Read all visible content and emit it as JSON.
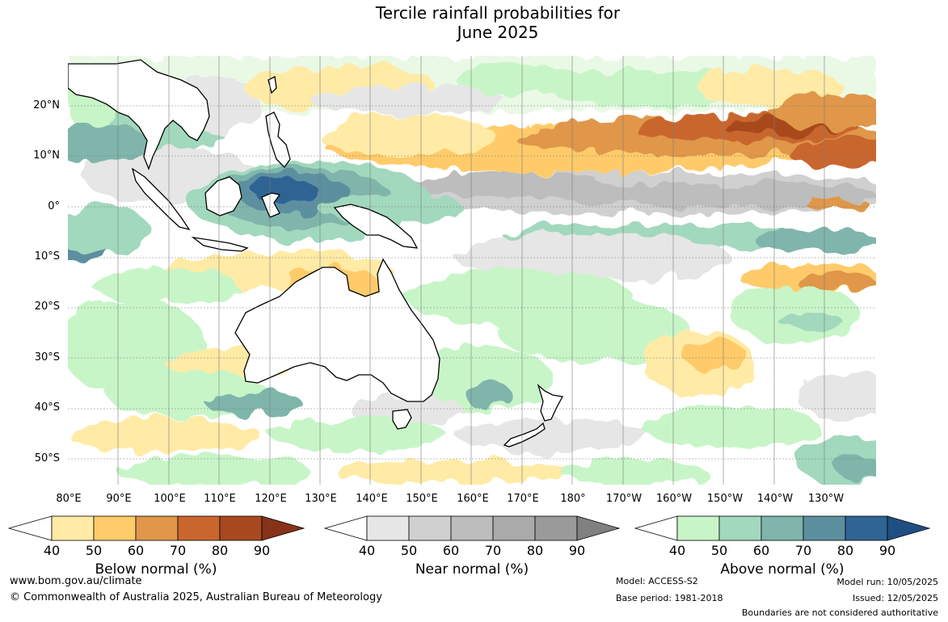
{
  "title": {
    "line1": "Tercile rainfall probabilities for",
    "line2": "June 2025"
  },
  "map": {
    "region": "Australia and Western Pacific",
    "lat_labels": [
      "20°N",
      "10°N",
      "0°",
      "10°S",
      "20°S",
      "30°S",
      "40°S",
      "50°S"
    ],
    "lon_labels": [
      "80°E",
      "90°E",
      "100°E",
      "110°E",
      "120°E",
      "130°E",
      "140°E",
      "150°E",
      "160°E",
      "170°E",
      "180°",
      "170°W",
      "160°W",
      "150°W",
      "140°W",
      "130°W"
    ],
    "colors": {
      "land_outline": "#000000",
      "neutral": "#ffffff",
      "below": [
        "#ffeba6",
        "#ffcb6b",
        "#e0974a",
        "#c9662e",
        "#a8491f",
        "#86331a"
      ],
      "near": [
        "#e6e6e6",
        "#d0d0d0",
        "#bdbdbd",
        "#aaaaaa",
        "#9a9a9a",
        "#808080"
      ],
      "above": [
        "#c8f5c8",
        "#a2d8bd",
        "#7fb5ab",
        "#5c8fa0",
        "#2f6494",
        "#1f4f82"
      ]
    }
  },
  "colorbars": [
    {
      "name": "Below normal (%)",
      "ticks": [
        "40",
        "50",
        "60",
        "70",
        "80",
        "90"
      ]
    },
    {
      "name": "Near normal (%)",
      "ticks": [
        "40",
        "50",
        "60",
        "70",
        "80",
        "90"
      ]
    },
    {
      "name": "Above normal (%)",
      "ticks": [
        "40",
        "50",
        "60",
        "70",
        "80",
        "90"
      ]
    }
  ],
  "footer": {
    "website": "www.bom.gov.au/climate",
    "copyright": "© Commonwealth of Australia 2025, Australian Bureau of Meteorology",
    "model": "Model: ACCESS-S2",
    "base_period": "Base period: 1981-2018",
    "model_run": "Model run: 10/05/2025",
    "issued": "Issued: 12/05/2025",
    "disclaimer": "Boundaries are not considered authoritative"
  }
}
